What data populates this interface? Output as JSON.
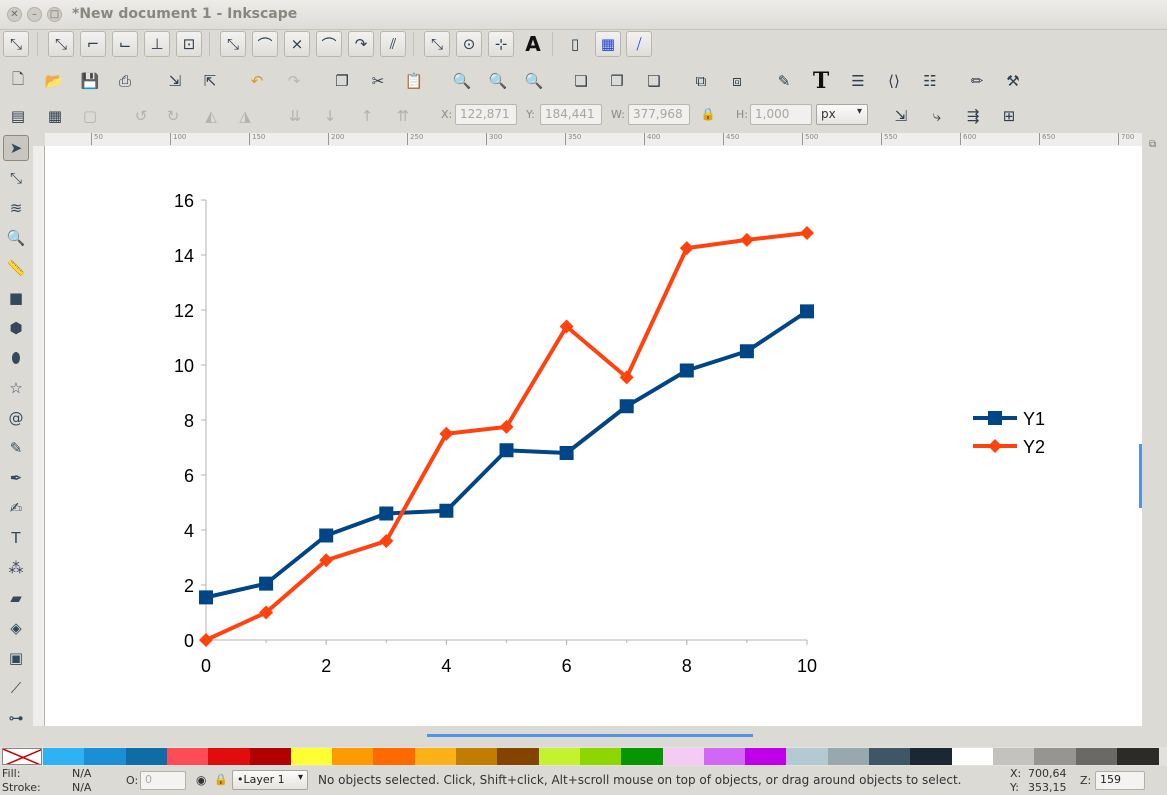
{
  "window": {
    "title": "*New document 1 - Inkscape"
  },
  "toolbar_snap": {
    "icons": [
      "snap-enable-icon",
      "snap-bbox-icon",
      "snap-bbox-edge-icon",
      "snap-bbox-corner-icon",
      "snap-bbox-midpoint-icon",
      "snap-bbox-center-icon",
      "snap-nodes-icon",
      "snap-path-icon",
      "snap-intersection-icon",
      "snap-cusp-icon",
      "snap-smooth-icon",
      "snap-line-midpoint-icon",
      "snap-others-icon",
      "snap-center-icon",
      "snap-rotation-center-icon",
      "snap-text-baseline-icon",
      "snap-page-border-icon",
      "snap-grid-icon",
      "snap-guide-icon"
    ]
  },
  "toolbar_commands": {
    "icons": [
      "new-document-icon",
      "open-icon",
      "save-icon",
      "print-icon",
      "import-icon",
      "export-icon",
      "undo-icon",
      "redo-icon",
      "copy-icon",
      "cut-icon",
      "paste-icon",
      "zoom-selection-icon",
      "zoom-drawing-icon",
      "zoom-page-icon",
      "duplicate-icon",
      "clone-icon",
      "unlink-clone-icon",
      "group-icon",
      "ungroup-icon",
      "fill-stroke-icon",
      "text-font-icon",
      "layers-icon",
      "xml-editor-icon",
      "align-distribute-icon",
      "preferences-icon",
      "document-properties-icon"
    ]
  },
  "toolbar_select": {
    "x_label": "X:",
    "x_value": "122,871",
    "y_label": "Y:",
    "y_value": "184,441",
    "w_label": "W:",
    "w_value": "377,968",
    "h_label": "H:",
    "h_value": "1,000",
    "unit": "px"
  },
  "ruler_h": [
    "50",
    "100",
    "150",
    "200",
    "250",
    "300",
    "350",
    "400",
    "450",
    "500",
    "550",
    "600",
    "650",
    "700"
  ],
  "tools": [
    "selector-icon",
    "node-editor-icon",
    "tweak-icon",
    "zoom-icon",
    "measure-icon",
    "rectangle-icon",
    "box-3d-icon",
    "ellipse-icon",
    "star-icon",
    "spiral-icon",
    "pencil-icon",
    "pen-icon",
    "calligraphy-icon",
    "text-icon",
    "spray-icon",
    "eraser-icon",
    "paint-bucket-icon",
    "gradient-icon",
    "dropper-icon",
    "connector-icon"
  ],
  "chart_data": {
    "type": "line",
    "x": [
      0,
      1,
      2,
      3,
      4,
      5,
      6,
      7,
      8,
      9,
      10
    ],
    "series": [
      {
        "name": "Y1",
        "color": "#004586",
        "marker": "square",
        "values": [
          1.55,
          2.05,
          3.8,
          4.6,
          4.7,
          6.9,
          6.8,
          8.5,
          9.8,
          10.5,
          11.95
        ]
      },
      {
        "name": "Y2",
        "color": "#ff420e",
        "marker": "diamond",
        "values": [
          0,
          1.0,
          2.9,
          3.6,
          7.5,
          7.75,
          11.4,
          9.55,
          14.25,
          14.55,
          14.8
        ]
      }
    ],
    "xlim": [
      0,
      10
    ],
    "ylim": [
      0,
      16
    ],
    "xticks": [
      "0",
      "2",
      "4",
      "6",
      "8",
      "10"
    ],
    "yticks": [
      "0",
      "2",
      "4",
      "6",
      "8",
      "10",
      "12",
      "14",
      "16"
    ],
    "grid": false,
    "legend_position": "right"
  },
  "palette": [
    "#2eb2f4",
    "#1a8fd6",
    "#0f6ca6",
    "#fd4c55",
    "#e10c0c",
    "#b20000",
    "#ffff33",
    "#ff9a00",
    "#ff6a00",
    "#fcb216",
    "#c27c00",
    "#844400",
    "#c5f22e",
    "#8ed600",
    "#079500",
    "#f4cbf2",
    "#d266f5",
    "#c000ea",
    "#b4cad3",
    "#97a9ae",
    "#3e5665",
    "#1b2833",
    "#ffffff",
    "#c3c2bf",
    "#979592",
    "#6b6966",
    "#2d2b28"
  ],
  "status": {
    "fill_label": "Fill:",
    "fill_value": "N/A",
    "stroke_label": "Stroke:",
    "stroke_value": "N/A",
    "opacity_label": "O:",
    "opacity_value": "0",
    "layer": "•Layer 1",
    "message": "No objects selected. Click, Shift+click, Alt+scroll mouse on top of objects, or drag around objects to select.",
    "x_label": "X:",
    "x_value": "700,64",
    "y_label": "Y:",
    "y_value": "353,15",
    "zoom_label": "Z:",
    "zoom_value": "159"
  }
}
